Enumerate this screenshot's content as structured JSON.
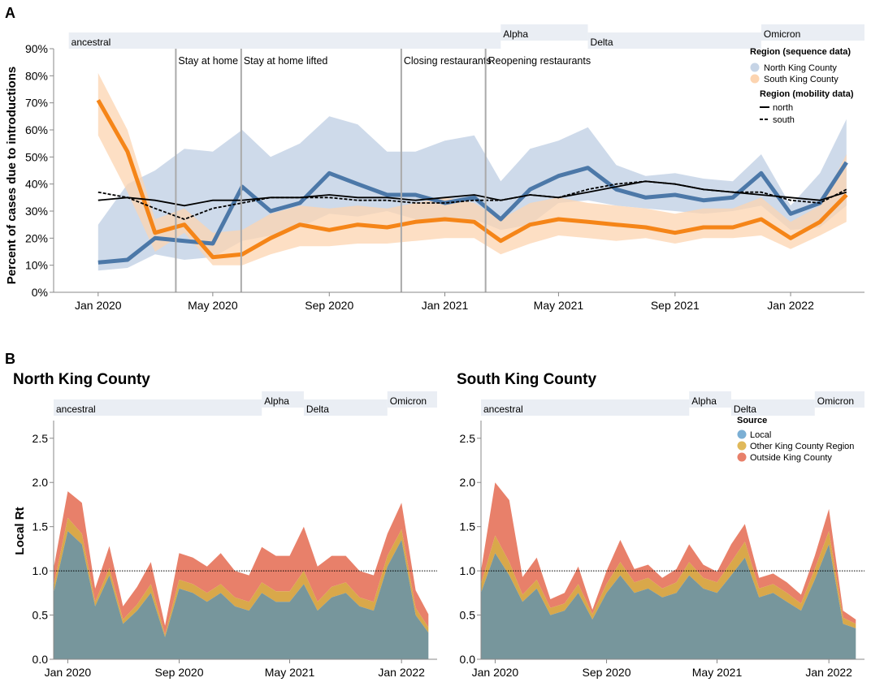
{
  "panels": {
    "a_letter": "A",
    "b_letter": "B",
    "b_left_title": "North King County",
    "b_right_title": "South King County"
  },
  "axes": {
    "a_ylabel": "Percent of cases due to introductions",
    "b_ylabel": "Local Rt"
  },
  "events": [
    {
      "label": "Stay at home",
      "date": "2020-03-23"
    },
    {
      "label": "Stay at home lifted",
      "date": "2020-05-31"
    },
    {
      "label": "Closing restaurants",
      "date": "2020-11-16"
    },
    {
      "label": "Reopening restaurants",
      "date": "2021-02-13"
    }
  ],
  "variants": [
    {
      "label": "ancestral",
      "start": "2019-12-01",
      "end": "2021-03-01",
      "row": 0
    },
    {
      "label": "Alpha",
      "start": "2021-03-01",
      "end": "2021-06-01",
      "row": 1
    },
    {
      "label": "Delta",
      "start": "2021-06-01",
      "end": "2021-12-01",
      "row": 0
    },
    {
      "label": "Omicron",
      "start": "2021-12-01",
      "end": "2022-04-01",
      "row": 1
    }
  ],
  "legend_a": {
    "title_seq": "Region (sequence data)",
    "seq_items": [
      {
        "label": "North King County",
        "color": "#c6d4e6"
      },
      {
        "label": "South King County",
        "color": "#fcd4b0"
      }
    ],
    "title_mob": "Region (mobility data)",
    "mob_items": [
      {
        "label": "north",
        "dash": "solid"
      },
      {
        "label": "south",
        "dash": "dashed"
      }
    ]
  },
  "legend_b": {
    "title": "Source",
    "items": [
      {
        "label": "Local",
        "color": "#7bafd4"
      },
      {
        "label": "Other King County Region",
        "color": "#e0b95a"
      },
      {
        "label": "Outside King County",
        "color": "#e8806a"
      }
    ]
  },
  "colors": {
    "north_line": "#4c78a8",
    "north_band": "#c6d4e6",
    "south_line": "#f58518",
    "south_band": "#fcd4b0",
    "variant_bg": "#eaeef4",
    "event_line": "#aaaaaa",
    "local": "#77969c",
    "other": "#d9a84a",
    "outside": "#e8806a"
  },
  "chart_data": [
    {
      "type": "area",
      "panel": "A",
      "ylabel": "Percent of cases due to introductions",
      "ylim": [
        0,
        90
      ],
      "yticks": [
        "0%",
        "10%",
        "20%",
        "30%",
        "40%",
        "50%",
        "60%",
        "70%",
        "80%",
        "90%"
      ],
      "xticks": [
        {
          "date": "2020-01-01",
          "label": "Jan 2020"
        },
        {
          "date": "2020-05-01",
          "label": "May 2020"
        },
        {
          "date": "2020-09-01",
          "label": "Sep 2020"
        },
        {
          "date": "2021-01-01",
          "label": "Jan 2021"
        },
        {
          "date": "2021-05-01",
          "label": "May 2021"
        },
        {
          "date": "2021-09-01",
          "label": "Sep 2021"
        },
        {
          "date": "2022-01-01",
          "label": "Jan 2022"
        }
      ],
      "x": [
        "2020-01-01",
        "2020-02-01",
        "2020-03-01",
        "2020-04-01",
        "2020-05-01",
        "2020-06-01",
        "2020-07-01",
        "2020-08-01",
        "2020-09-01",
        "2020-10-01",
        "2020-11-01",
        "2020-12-01",
        "2021-01-01",
        "2021-02-01",
        "2021-03-01",
        "2021-04-01",
        "2021-05-01",
        "2021-06-01",
        "2021-07-01",
        "2021-08-01",
        "2021-09-01",
        "2021-10-01",
        "2021-11-01",
        "2021-12-01",
        "2022-01-01",
        "2022-02-01",
        "2022-03-01"
      ],
      "series": [
        {
          "name": "North King County",
          "kind": "band",
          "lower": [
            8,
            9,
            14,
            12,
            13,
            19,
            21,
            24,
            29,
            28,
            30,
            27,
            26,
            27,
            23,
            25,
            33,
            34,
            32,
            31,
            30,
            29,
            30,
            32,
            23,
            24,
            32
          ],
          "mid": [
            11,
            12,
            20,
            19,
            18,
            39,
            30,
            33,
            44,
            40,
            36,
            36,
            33,
            35,
            27,
            38,
            43,
            46,
            38,
            35,
            36,
            34,
            35,
            44,
            29,
            33,
            48
          ],
          "upper": [
            25,
            40,
            45,
            53,
            52,
            60,
            50,
            55,
            65,
            62,
            52,
            52,
            56,
            58,
            41,
            53,
            56,
            61,
            47,
            43,
            44,
            42,
            41,
            51,
            32,
            44,
            64
          ]
        },
        {
          "name": "South King County",
          "kind": "band",
          "lower": [
            58,
            37,
            15,
            22,
            10,
            10,
            14,
            17,
            17,
            18,
            18,
            19,
            20,
            20,
            14,
            18,
            21,
            20,
            19,
            20,
            18,
            20,
            20,
            21,
            16,
            21,
            26
          ],
          "mid": [
            71,
            52,
            22,
            25,
            13,
            14,
            20,
            25,
            23,
            25,
            24,
            26,
            27,
            26,
            19,
            25,
            27,
            26,
            25,
            24,
            22,
            24,
            24,
            27,
            20,
            26,
            36
          ],
          "upper": [
            81,
            60,
            27,
            31,
            22,
            23,
            29,
            32,
            31,
            32,
            31,
            33,
            35,
            33,
            27,
            33,
            35,
            33,
            32,
            31,
            29,
            31,
            31,
            35,
            26,
            32,
            51
          ]
        },
        {
          "name": "north",
          "kind": "line",
          "values": [
            34,
            35,
            34,
            32,
            34,
            34,
            35,
            35,
            36,
            35,
            35,
            34,
            35,
            36,
            34,
            36,
            35,
            37,
            39,
            41,
            40,
            38,
            37,
            36,
            35,
            34,
            37
          ]
        },
        {
          "name": "south",
          "kind": "line",
          "values": [
            37,
            35,
            31,
            27,
            31,
            33,
            35,
            35,
            35,
            34,
            34,
            33,
            33,
            34,
            34,
            36,
            35,
            38,
            40,
            41,
            40,
            38,
            37,
            37,
            34,
            33,
            38
          ]
        }
      ]
    },
    {
      "type": "area",
      "panel": "B-left",
      "title": "North King County",
      "ylabel": "Local Rt",
      "ylim": [
        0,
        2.7
      ],
      "yticks": [
        "0.0",
        "0.5",
        "1.0",
        "1.5",
        "2.0",
        "2.5"
      ],
      "xticks": [
        {
          "date": "2020-01-01",
          "label": "Jan 2020"
        },
        {
          "date": "2020-09-01",
          "label": "Sep 2020"
        },
        {
          "date": "2021-05-01",
          "label": "May 2021"
        },
        {
          "date": "2022-01-01",
          "label": "Jan 2022"
        }
      ],
      "x": [
        "2019-12-01",
        "2020-01-01",
        "2020-02-01",
        "2020-03-01",
        "2020-04-01",
        "2020-05-01",
        "2020-06-01",
        "2020-07-01",
        "2020-08-01",
        "2020-09-01",
        "2020-10-01",
        "2020-11-01",
        "2020-12-01",
        "2021-01-01",
        "2021-02-01",
        "2021-03-01",
        "2021-04-01",
        "2021-05-01",
        "2021-06-01",
        "2021-07-01",
        "2021-08-01",
        "2021-09-01",
        "2021-10-01",
        "2021-11-01",
        "2021-12-01",
        "2022-01-01",
        "2022-02-01",
        "2022-03-01"
      ],
      "series": [
        {
          "name": "Local",
          "values": [
            0.75,
            1.45,
            1.3,
            0.6,
            0.95,
            0.4,
            0.55,
            0.75,
            0.25,
            0.8,
            0.75,
            0.65,
            0.75,
            0.6,
            0.55,
            0.75,
            0.65,
            0.65,
            0.85,
            0.55,
            0.7,
            0.75,
            0.6,
            0.55,
            1.05,
            1.35,
            0.5,
            0.3
          ]
        },
        {
          "name": "Other King County Region",
          "values": [
            0.08,
            0.15,
            0.12,
            0.05,
            0.08,
            0.05,
            0.07,
            0.1,
            0.03,
            0.1,
            0.1,
            0.1,
            0.1,
            0.1,
            0.1,
            0.12,
            0.12,
            0.12,
            0.15,
            0.1,
            0.12,
            0.12,
            0.1,
            0.1,
            0.12,
            0.12,
            0.08,
            0.06
          ]
        },
        {
          "name": "Outside King County",
          "values": [
            0.2,
            0.3,
            0.35,
            0.15,
            0.25,
            0.15,
            0.2,
            0.25,
            0.1,
            0.3,
            0.3,
            0.3,
            0.35,
            0.3,
            0.3,
            0.4,
            0.4,
            0.4,
            0.5,
            0.4,
            0.35,
            0.3,
            0.3,
            0.3,
            0.25,
            0.3,
            0.2,
            0.15
          ]
        }
      ]
    },
    {
      "type": "area",
      "panel": "B-right",
      "title": "South King County",
      "ylabel": "",
      "ylim": [
        0,
        2.7
      ],
      "yticks": [
        "0.0",
        "0.5",
        "1.0",
        "1.5",
        "2.0",
        "2.5"
      ],
      "xticks": [
        {
          "date": "2020-01-01",
          "label": "Jan 2020"
        },
        {
          "date": "2020-09-01",
          "label": "Sep 2020"
        },
        {
          "date": "2021-05-01",
          "label": "May 2021"
        },
        {
          "date": "2022-01-01",
          "label": "Jan 2022"
        }
      ],
      "x": [
        "2019-12-01",
        "2020-01-01",
        "2020-02-01",
        "2020-03-01",
        "2020-04-01",
        "2020-05-01",
        "2020-06-01",
        "2020-07-01",
        "2020-08-01",
        "2020-09-01",
        "2020-10-01",
        "2020-11-01",
        "2020-12-01",
        "2021-01-01",
        "2021-02-01",
        "2021-03-01",
        "2021-04-01",
        "2021-05-01",
        "2021-06-01",
        "2021-07-01",
        "2021-08-01",
        "2021-09-01",
        "2021-10-01",
        "2021-11-01",
        "2021-12-01",
        "2022-01-01",
        "2022-02-01",
        "2022-03-01"
      ],
      "series": [
        {
          "name": "Local",
          "values": [
            0.75,
            1.2,
            0.95,
            0.65,
            0.8,
            0.5,
            0.55,
            0.75,
            0.45,
            0.75,
            0.95,
            0.75,
            0.8,
            0.7,
            0.75,
            0.95,
            0.8,
            0.75,
            0.95,
            1.15,
            0.7,
            0.75,
            0.65,
            0.55,
            0.9,
            1.3,
            0.4,
            0.35
          ]
        },
        {
          "name": "Other King County Region",
          "values": [
            0.1,
            0.2,
            0.15,
            0.08,
            0.1,
            0.08,
            0.08,
            0.1,
            0.06,
            0.1,
            0.15,
            0.12,
            0.12,
            0.1,
            0.12,
            0.15,
            0.12,
            0.12,
            0.15,
            0.18,
            0.1,
            0.1,
            0.1,
            0.08,
            0.12,
            0.15,
            0.07,
            0.05
          ]
        },
        {
          "name": "Outside King County",
          "values": [
            0.15,
            0.6,
            0.7,
            0.2,
            0.25,
            0.1,
            0.12,
            0.2,
            0.05,
            0.15,
            0.25,
            0.15,
            0.15,
            0.12,
            0.15,
            0.2,
            0.15,
            0.12,
            0.2,
            0.2,
            0.12,
            0.12,
            0.12,
            0.1,
            0.15,
            0.25,
            0.08,
            0.05
          ]
        }
      ]
    }
  ]
}
